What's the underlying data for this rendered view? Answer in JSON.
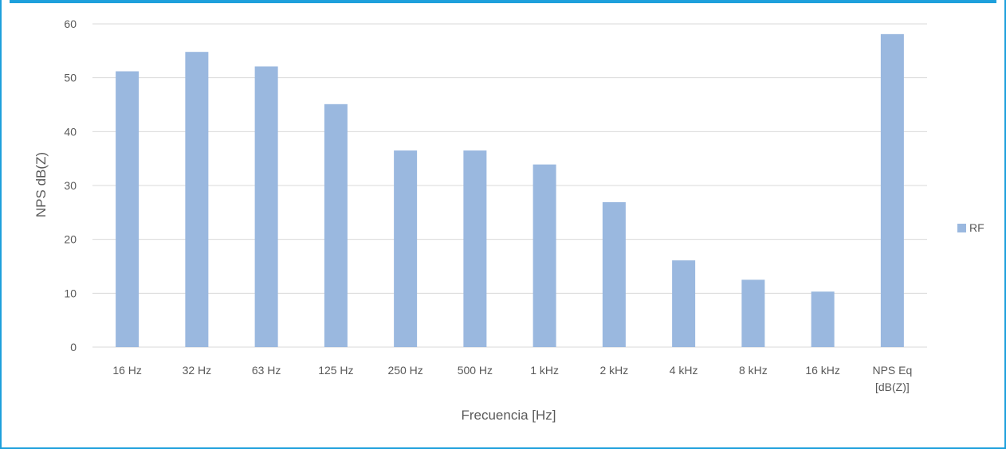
{
  "chart_data": {
    "type": "bar",
    "categories": [
      "16 Hz",
      "32 Hz",
      "63 Hz",
      "125 Hz",
      "250 Hz",
      "500 Hz",
      "1 kHz",
      "2 kHz",
      "4 kHz",
      "8 kHz",
      "16 kHz",
      "NPS Eq\n[dB(Z)]"
    ],
    "series": [
      {
        "name": "RF",
        "values": [
          51.2,
          54.8,
          52.1,
          45.1,
          36.5,
          36.5,
          33.9,
          26.9,
          16.1,
          12.5,
          10.3,
          58.1
        ]
      }
    ],
    "xlabel": "Frecuencia [Hz]",
    "ylabel": "NPS dB(Z)",
    "ylim": [
      0,
      60
    ],
    "yticks": [
      0,
      10,
      20,
      30,
      40,
      50,
      60
    ],
    "grid": true,
    "legend_position": "right",
    "colors": {
      "bar": "#9ab8df",
      "grid": "#d9d9d9",
      "text": "#595959",
      "border": "#1ea0dc"
    }
  }
}
